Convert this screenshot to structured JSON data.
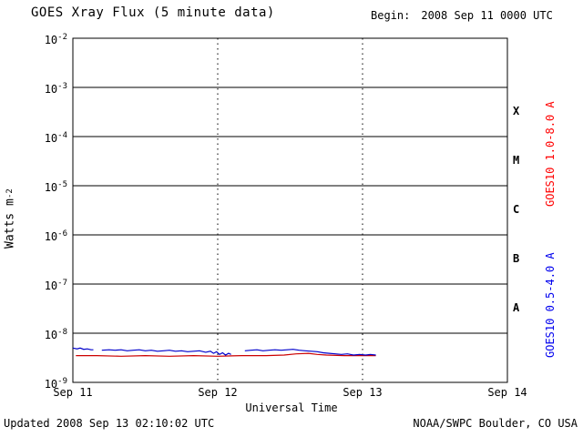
{
  "header": {
    "begin_label": "Begin:",
    "begin_value": "2008 Sep 11 0000 UTC"
  },
  "footer": {
    "updated": "Updated 2008 Sep 13 02:10:02 UTC",
    "source": "NOAA/SWPC Boulder, CO USA"
  },
  "chart_data": {
    "type": "line",
    "title": "GOES Xray Flux (5 minute data)",
    "xlabel": "Universal Time",
    "ylabel": "Watts m-2",
    "ylabel_base": "Watts m",
    "ylabel_sup": "-2",
    "x_unit": "hours since 2008 Sep 11 0000 UTC",
    "xlim": [
      0,
      72
    ],
    "ylim": [
      1e-09,
      0.01
    ],
    "ylim_exponents": [
      -9,
      -2
    ],
    "y_scale": "log",
    "grid": "horizontal solid per decade, vertical dotted per day",
    "y_ticks_exponents": [
      -2,
      -3,
      -4,
      -5,
      -6,
      -7,
      -8,
      -9
    ],
    "x_ticks": [
      {
        "t": 0,
        "label": "Sep 11"
      },
      {
        "t": 24,
        "label": "Sep 12"
      },
      {
        "t": 48,
        "label": "Sep 13"
      },
      {
        "t": 72,
        "label": "Sep 14"
      }
    ],
    "day_gridlines_t": [
      24,
      48
    ],
    "flare_classes": [
      {
        "label": "X",
        "center_exponent": -3.5
      },
      {
        "label": "M",
        "center_exponent": -4.5
      },
      {
        "label": "C",
        "center_exponent": -5.5
      },
      {
        "label": "B",
        "center_exponent": -6.5
      },
      {
        "label": "A",
        "center_exponent": -7.5
      }
    ],
    "series": [
      {
        "name": "GOES10 1.0-8.0 A",
        "color": "#ff0000",
        "data_color": "#cc0000",
        "segments": [
          [
            [
              0.5,
              3.5e-09
            ],
            [
              4,
              3.5e-09
            ],
            [
              8,
              3.4e-09
            ],
            [
              12,
              3.5e-09
            ],
            [
              16,
              3.4e-09
            ],
            [
              20,
              3.5e-09
            ],
            [
              24,
              3.4e-09
            ],
            [
              28,
              3.5e-09
            ],
            [
              32,
              3.5e-09
            ],
            [
              35,
              3.6e-09
            ],
            [
              37,
              3.8e-09
            ],
            [
              39,
              3.9e-09
            ],
            [
              40.5,
              3.7e-09
            ],
            [
              42,
              3.6e-09
            ],
            [
              45,
              3.5e-09
            ],
            [
              48,
              3.5e-09
            ],
            [
              50.2,
              3.5e-09
            ]
          ]
        ]
      },
      {
        "name": "GOES10 0.5-4.0 A",
        "color": "#0000ee",
        "data_color": "#0000cc",
        "segments": [
          [
            [
              0,
              5e-09
            ],
            [
              0.7,
              4.8e-09
            ],
            [
              1.2,
              5e-09
            ],
            [
              1.8,
              4.7e-09
            ],
            [
              2.4,
              4.8e-09
            ],
            [
              3.0,
              4.6e-09
            ],
            [
              3.4,
              4.6e-09
            ]
          ],
          [
            [
              4.8,
              4.5e-09
            ],
            [
              6,
              4.6e-09
            ],
            [
              7,
              4.5e-09
            ],
            [
              8,
              4.6e-09
            ],
            [
              9,
              4.4e-09
            ],
            [
              10,
              4.5e-09
            ],
            [
              11,
              4.6e-09
            ],
            [
              12,
              4.4e-09
            ],
            [
              13,
              4.5e-09
            ],
            [
              14,
              4.3e-09
            ],
            [
              15,
              4.4e-09
            ],
            [
              16,
              4.5e-09
            ],
            [
              17,
              4.3e-09
            ],
            [
              18,
              4.4e-09
            ],
            [
              19,
              4.2e-09
            ],
            [
              20,
              4.3e-09
            ],
            [
              21,
              4.4e-09
            ],
            [
              22,
              4.1e-09
            ],
            [
              22.8,
              4.3e-09
            ],
            [
              23.3,
              3.9e-09
            ],
            [
              23.8,
              4.2e-09
            ],
            [
              24.3,
              3.7e-09
            ],
            [
              24.8,
              4e-09
            ],
            [
              25.3,
              3.6e-09
            ],
            [
              25.8,
              3.9e-09
            ],
            [
              26.2,
              3.7e-09
            ]
          ],
          [
            [
              28.5,
              4.4e-09
            ],
            [
              29.5,
              4.5e-09
            ],
            [
              30.5,
              4.6e-09
            ],
            [
              31.5,
              4.4e-09
            ],
            [
              32.5,
              4.5e-09
            ],
            [
              33.5,
              4.6e-09
            ],
            [
              34.5,
              4.5e-09
            ],
            [
              35.5,
              4.6e-09
            ],
            [
              36.5,
              4.7e-09
            ],
            [
              37.5,
              4.5e-09
            ],
            [
              38.5,
              4.4e-09
            ],
            [
              39.5,
              4.3e-09
            ],
            [
              40.5,
              4.2e-09
            ],
            [
              41.5,
              4e-09
            ],
            [
              42.5,
              3.9e-09
            ],
            [
              43.5,
              3.8e-09
            ],
            [
              44.5,
              3.7e-09
            ],
            [
              45.5,
              3.8e-09
            ],
            [
              46.5,
              3.6e-09
            ],
            [
              47.5,
              3.7e-09
            ],
            [
              48.5,
              3.6e-09
            ],
            [
              49.3,
              3.7e-09
            ],
            [
              50.2,
              3.6e-09
            ]
          ]
        ]
      }
    ]
  }
}
